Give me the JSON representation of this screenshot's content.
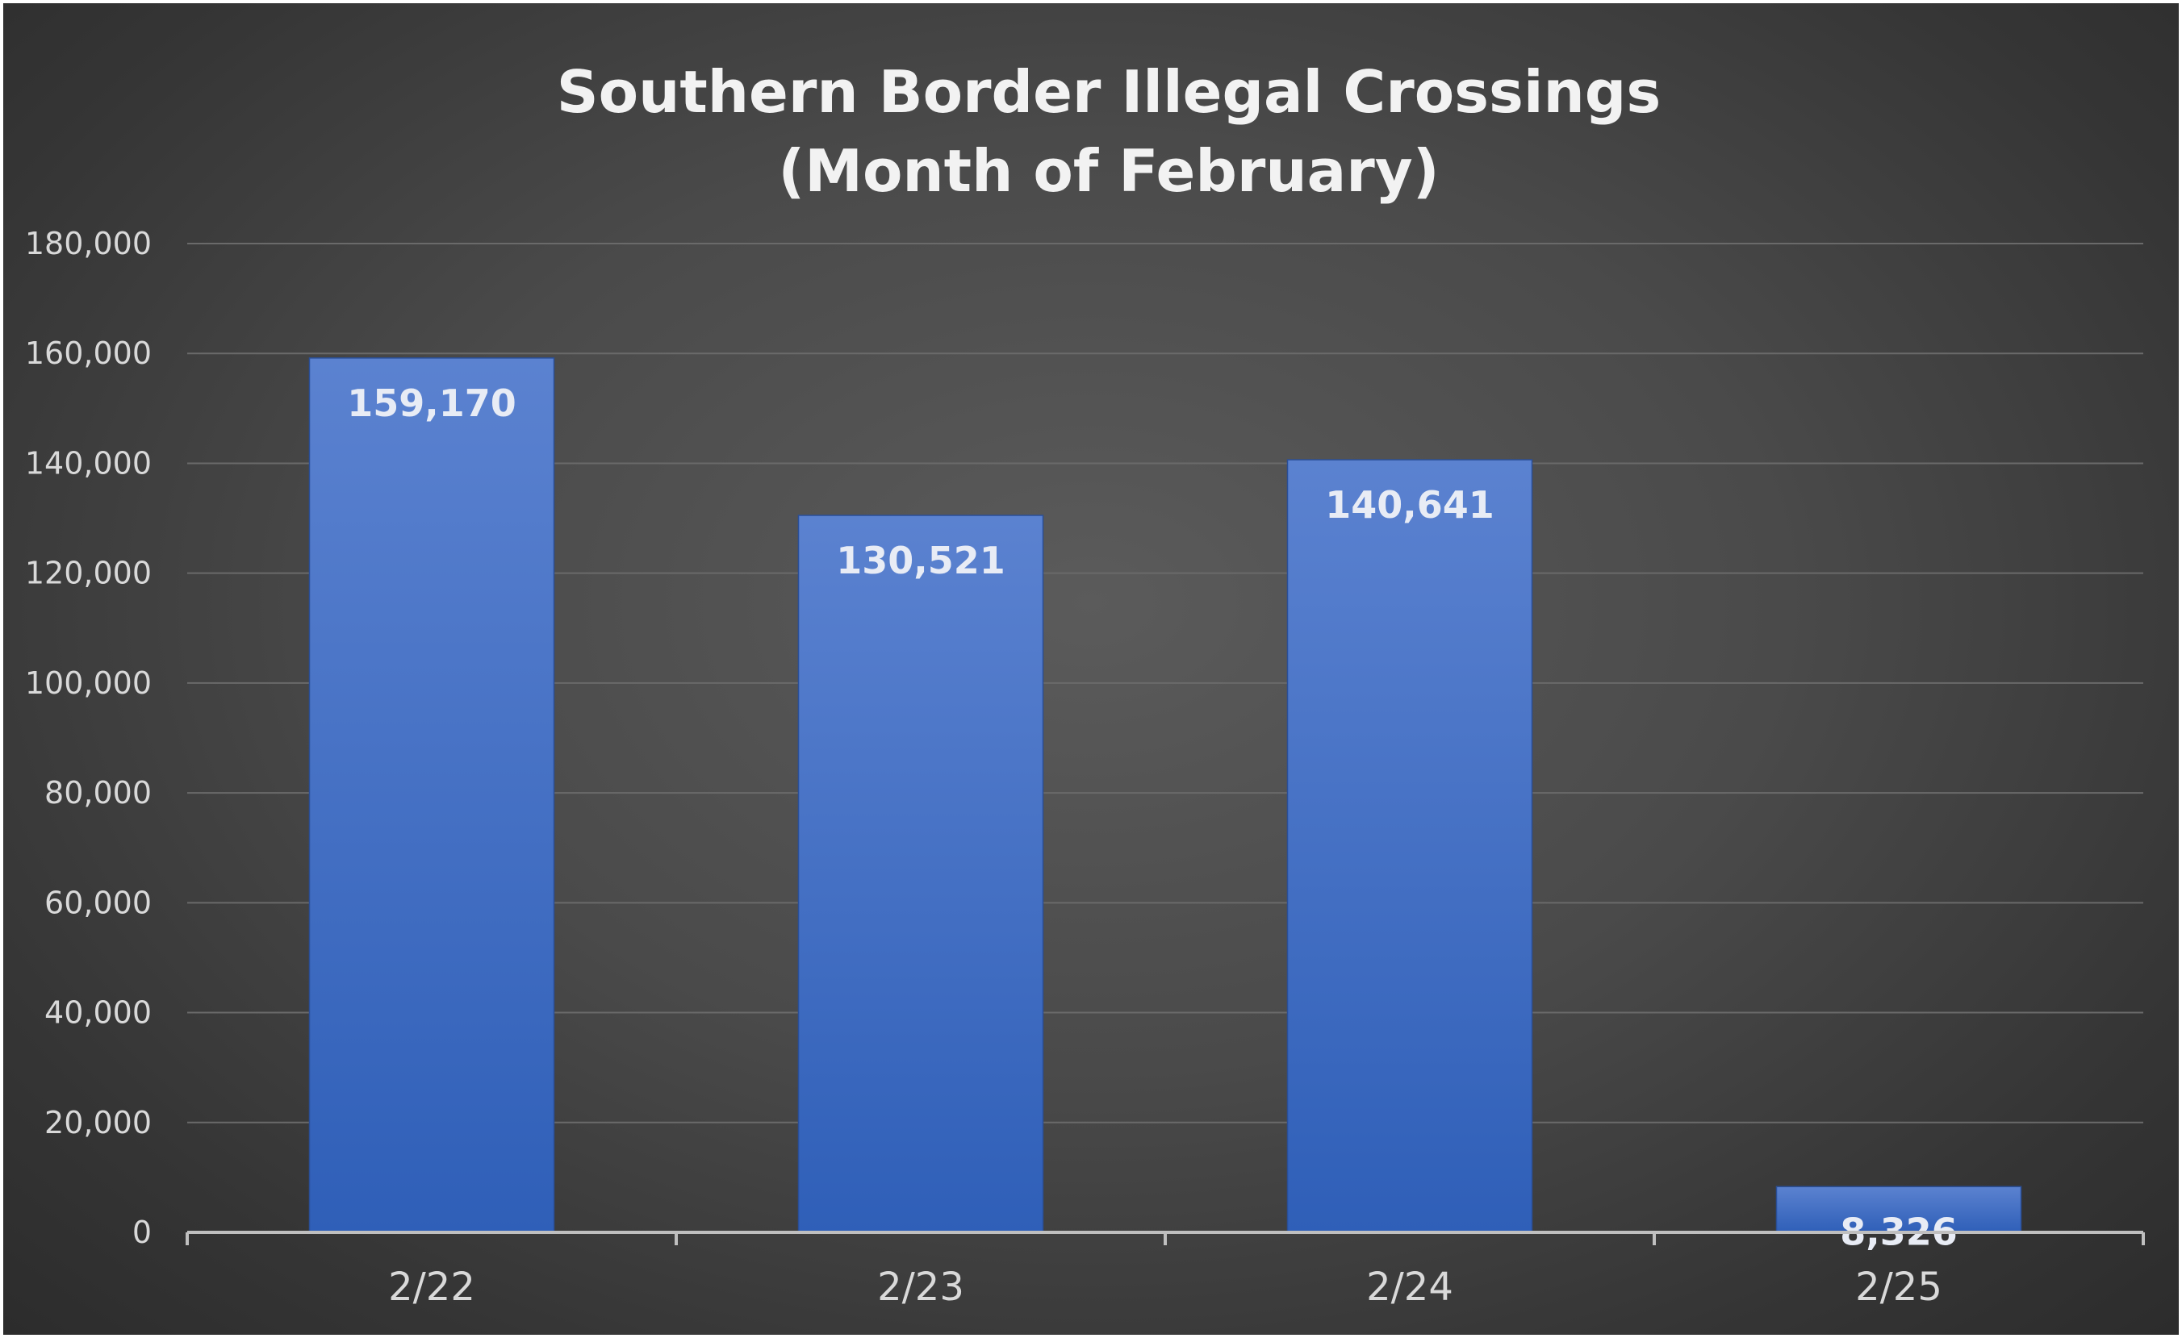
{
  "chart_data": {
    "type": "bar",
    "title": [
      "Southern Border Illegal Crossings",
      "(Month of February)"
    ],
    "categories": [
      "2/22",
      "2/23",
      "2/24",
      "2/25"
    ],
    "values": [
      159170,
      130521,
      140641,
      8326
    ],
    "data_labels": [
      "159,170",
      "130,521",
      "140,641",
      "8,326"
    ],
    "ylim": [
      0,
      180000
    ],
    "y_ticks": [
      0,
      20000,
      40000,
      60000,
      80000,
      100000,
      120000,
      140000,
      160000,
      180000
    ],
    "y_tick_labels": [
      "0",
      "20,000",
      "40,000",
      "60,000",
      "80,000",
      "100,000",
      "120,000",
      "140,000",
      "160,000",
      "180,000"
    ],
    "grid": true,
    "legend": "none",
    "colors": {
      "bar_top": "#5b82d0",
      "bar_bottom": "#2f5fb8",
      "background": "#4a4a4a"
    }
  }
}
